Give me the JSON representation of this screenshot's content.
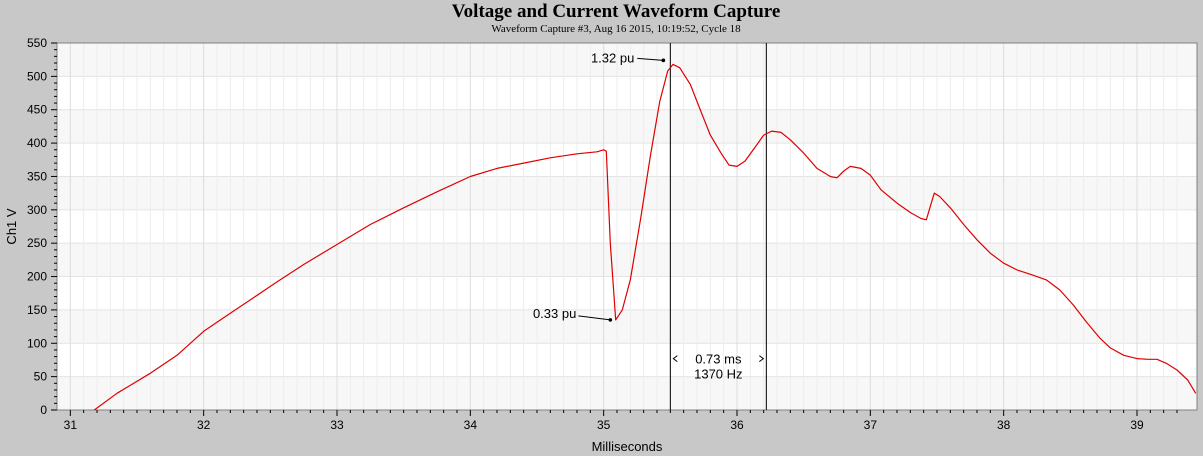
{
  "chart_data": {
    "type": "line",
    "title": "Voltage and Current Waveform Capture",
    "subtitle": "Waveform Capture #3, Aug 16 2015, 10:19:52,  Cycle 18",
    "xlabel": "Milliseconds",
    "ylabel": "Ch1 V",
    "xlim": [
      30.9,
      39.45
    ],
    "ylim": [
      0,
      550
    ],
    "x_ticks": [
      31,
      32,
      33,
      34,
      35,
      36,
      37,
      38,
      39
    ],
    "y_ticks": [
      0,
      50,
      100,
      150,
      200,
      250,
      300,
      350,
      400,
      450,
      500,
      550
    ],
    "grid": true,
    "series": [
      {
        "name": "",
        "color": "#e00000",
        "points": [
          [
            31.18,
            0
          ],
          [
            31.35,
            25
          ],
          [
            31.6,
            55
          ],
          [
            31.8,
            82
          ],
          [
            32.0,
            118
          ],
          [
            32.2,
            145
          ],
          [
            32.35,
            165
          ],
          [
            32.55,
            192
          ],
          [
            32.75,
            218
          ],
          [
            33.0,
            248
          ],
          [
            33.25,
            278
          ],
          [
            33.5,
            303
          ],
          [
            33.75,
            327
          ],
          [
            34.0,
            350
          ],
          [
            34.2,
            362
          ],
          [
            34.4,
            370
          ],
          [
            34.6,
            378
          ],
          [
            34.8,
            384
          ],
          [
            34.95,
            387
          ],
          [
            35.0,
            390
          ],
          [
            35.02,
            388
          ],
          [
            35.05,
            250
          ],
          [
            35.09,
            135
          ],
          [
            35.14,
            150
          ],
          [
            35.2,
            195
          ],
          [
            35.28,
            290
          ],
          [
            35.35,
            380
          ],
          [
            35.42,
            462
          ],
          [
            35.48,
            508
          ],
          [
            35.52,
            518
          ],
          [
            35.57,
            513
          ],
          [
            35.65,
            488
          ],
          [
            35.72,
            452
          ],
          [
            35.8,
            412
          ],
          [
            35.88,
            385
          ],
          [
            35.94,
            367
          ],
          [
            36.0,
            365
          ],
          [
            36.06,
            373
          ],
          [
            36.14,
            395
          ],
          [
            36.2,
            412
          ],
          [
            36.26,
            418
          ],
          [
            36.33,
            416
          ],
          [
            36.4,
            405
          ],
          [
            36.5,
            385
          ],
          [
            36.6,
            362
          ],
          [
            36.7,
            350
          ],
          [
            36.75,
            348
          ],
          [
            36.8,
            358
          ],
          [
            36.85,
            365
          ],
          [
            36.93,
            362
          ],
          [
            37.0,
            352
          ],
          [
            37.08,
            330
          ],
          [
            37.2,
            310
          ],
          [
            37.3,
            296
          ],
          [
            37.38,
            287
          ],
          [
            37.42,
            285
          ],
          [
            37.48,
            325
          ],
          [
            37.52,
            320
          ],
          [
            37.6,
            303
          ],
          [
            37.7,
            278
          ],
          [
            37.8,
            255
          ],
          [
            37.9,
            235
          ],
          [
            38.0,
            220
          ],
          [
            38.1,
            210
          ],
          [
            38.22,
            202
          ],
          [
            38.32,
            195
          ],
          [
            38.42,
            180
          ],
          [
            38.52,
            158
          ],
          [
            38.62,
            132
          ],
          [
            38.72,
            108
          ],
          [
            38.8,
            93
          ],
          [
            38.9,
            82
          ],
          [
            39.0,
            77
          ],
          [
            39.08,
            76
          ],
          [
            39.15,
            76
          ],
          [
            39.22,
            70
          ],
          [
            39.3,
            60
          ],
          [
            39.38,
            45
          ],
          [
            39.44,
            25
          ]
        ]
      }
    ],
    "cursors": [
      35.5,
      36.22
    ],
    "annotations": [
      {
        "text": "1.32 pu",
        "x": 35.5,
        "y": 524
      },
      {
        "text": "0.33 pu",
        "x": 35.08,
        "y": 135
      },
      {
        "text": "0.73 ms",
        "x": 35.86,
        "y": 77
      },
      {
        "text": "1370 Hz",
        "x": 35.86,
        "y": 77
      }
    ],
    "colors": {
      "line": "#e00000",
      "plot_background": "#f8f8f8",
      "frame": "#c8c8c8"
    }
  }
}
